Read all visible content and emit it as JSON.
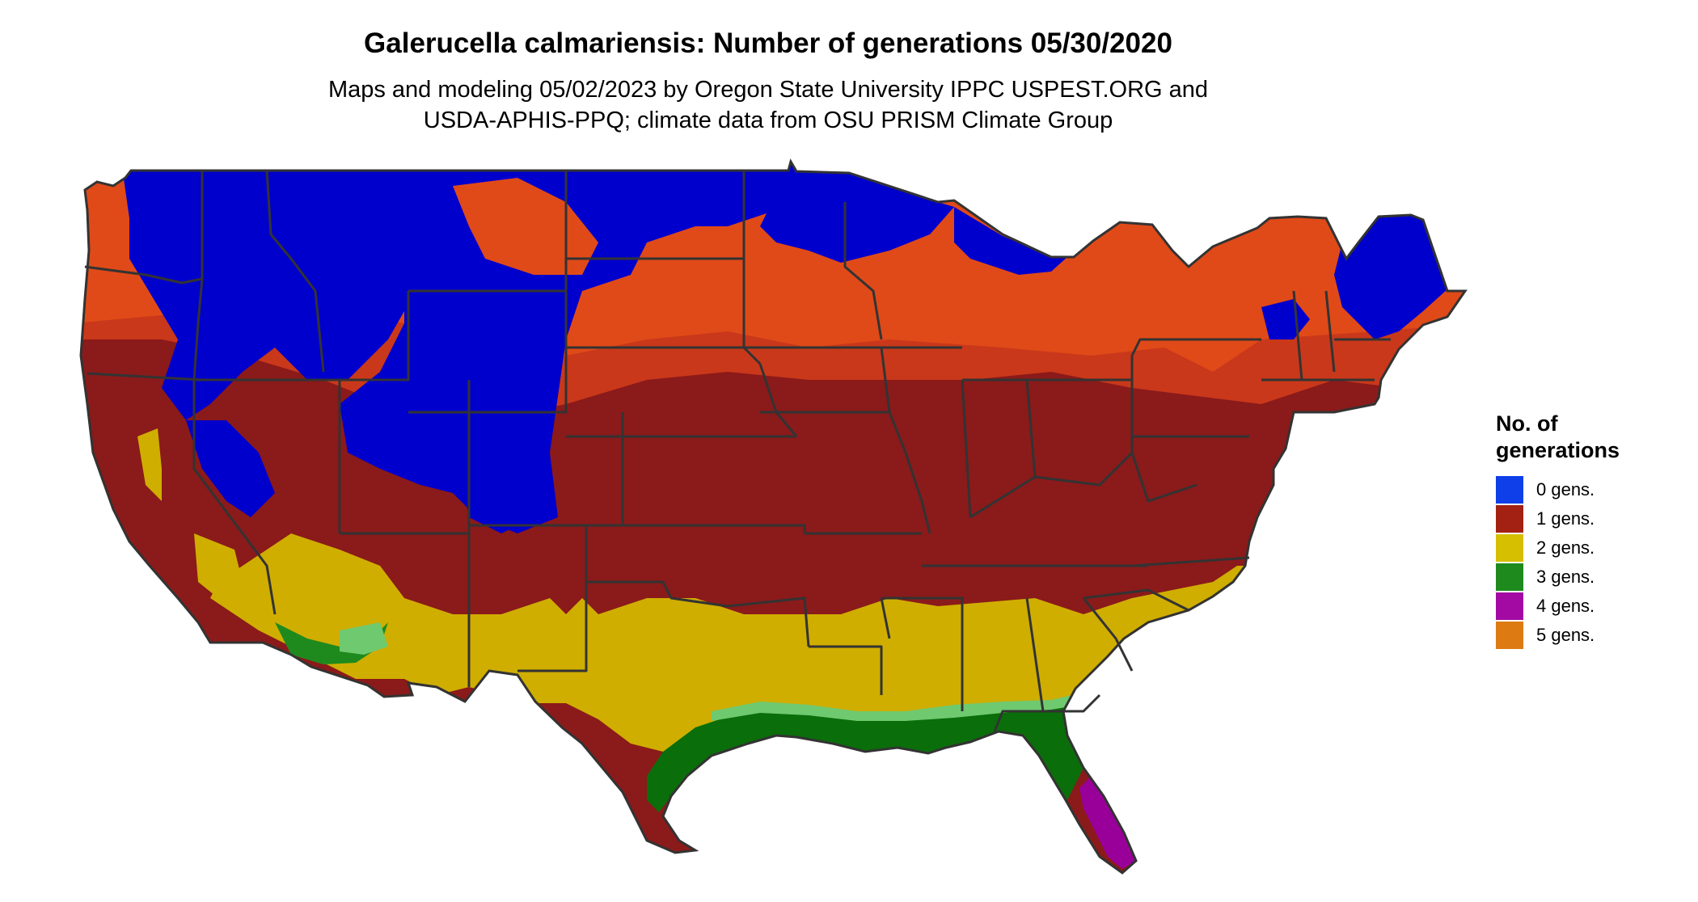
{
  "title": "Galerucella calmariensis: Number of generations 05/30/2020",
  "subtitle": {
    "line1": "Maps and modeling 05/02/2023 by Oregon State University IPPC USPEST.ORG and",
    "line2": "USDA-APHIS-PPQ; climate data from OSU PRISM Climate Group"
  },
  "legend": {
    "title_line1": "No. of",
    "title_line2": "generations",
    "items": [
      {
        "label": "0 gens.",
        "color": "#0f3fe8",
        "value": 0
      },
      {
        "label": "1 gens.",
        "color": "#a22113",
        "value": 1
      },
      {
        "label": "2 gens.",
        "color": "#d5bf00",
        "value": 2
      },
      {
        "label": "3 gens.",
        "color": "#1e8a1e",
        "value": 3
      },
      {
        "label": "4 gens.",
        "color": "#a30aa3",
        "value": 4
      },
      {
        "label": "5 gens.",
        "color": "#dd7a12",
        "value": 5
      }
    ]
  },
  "map_colors": {
    "zero": "#0000cc",
    "one_dark": "#8b1a1a",
    "one_light": "#d43d12",
    "one_orange": "#e84a1a",
    "two": "#cfae00",
    "three": "#0a6e0a",
    "three_light": "#6fc96f",
    "four": "#990099",
    "five": "#e07a10",
    "state_border": "#333333"
  }
}
